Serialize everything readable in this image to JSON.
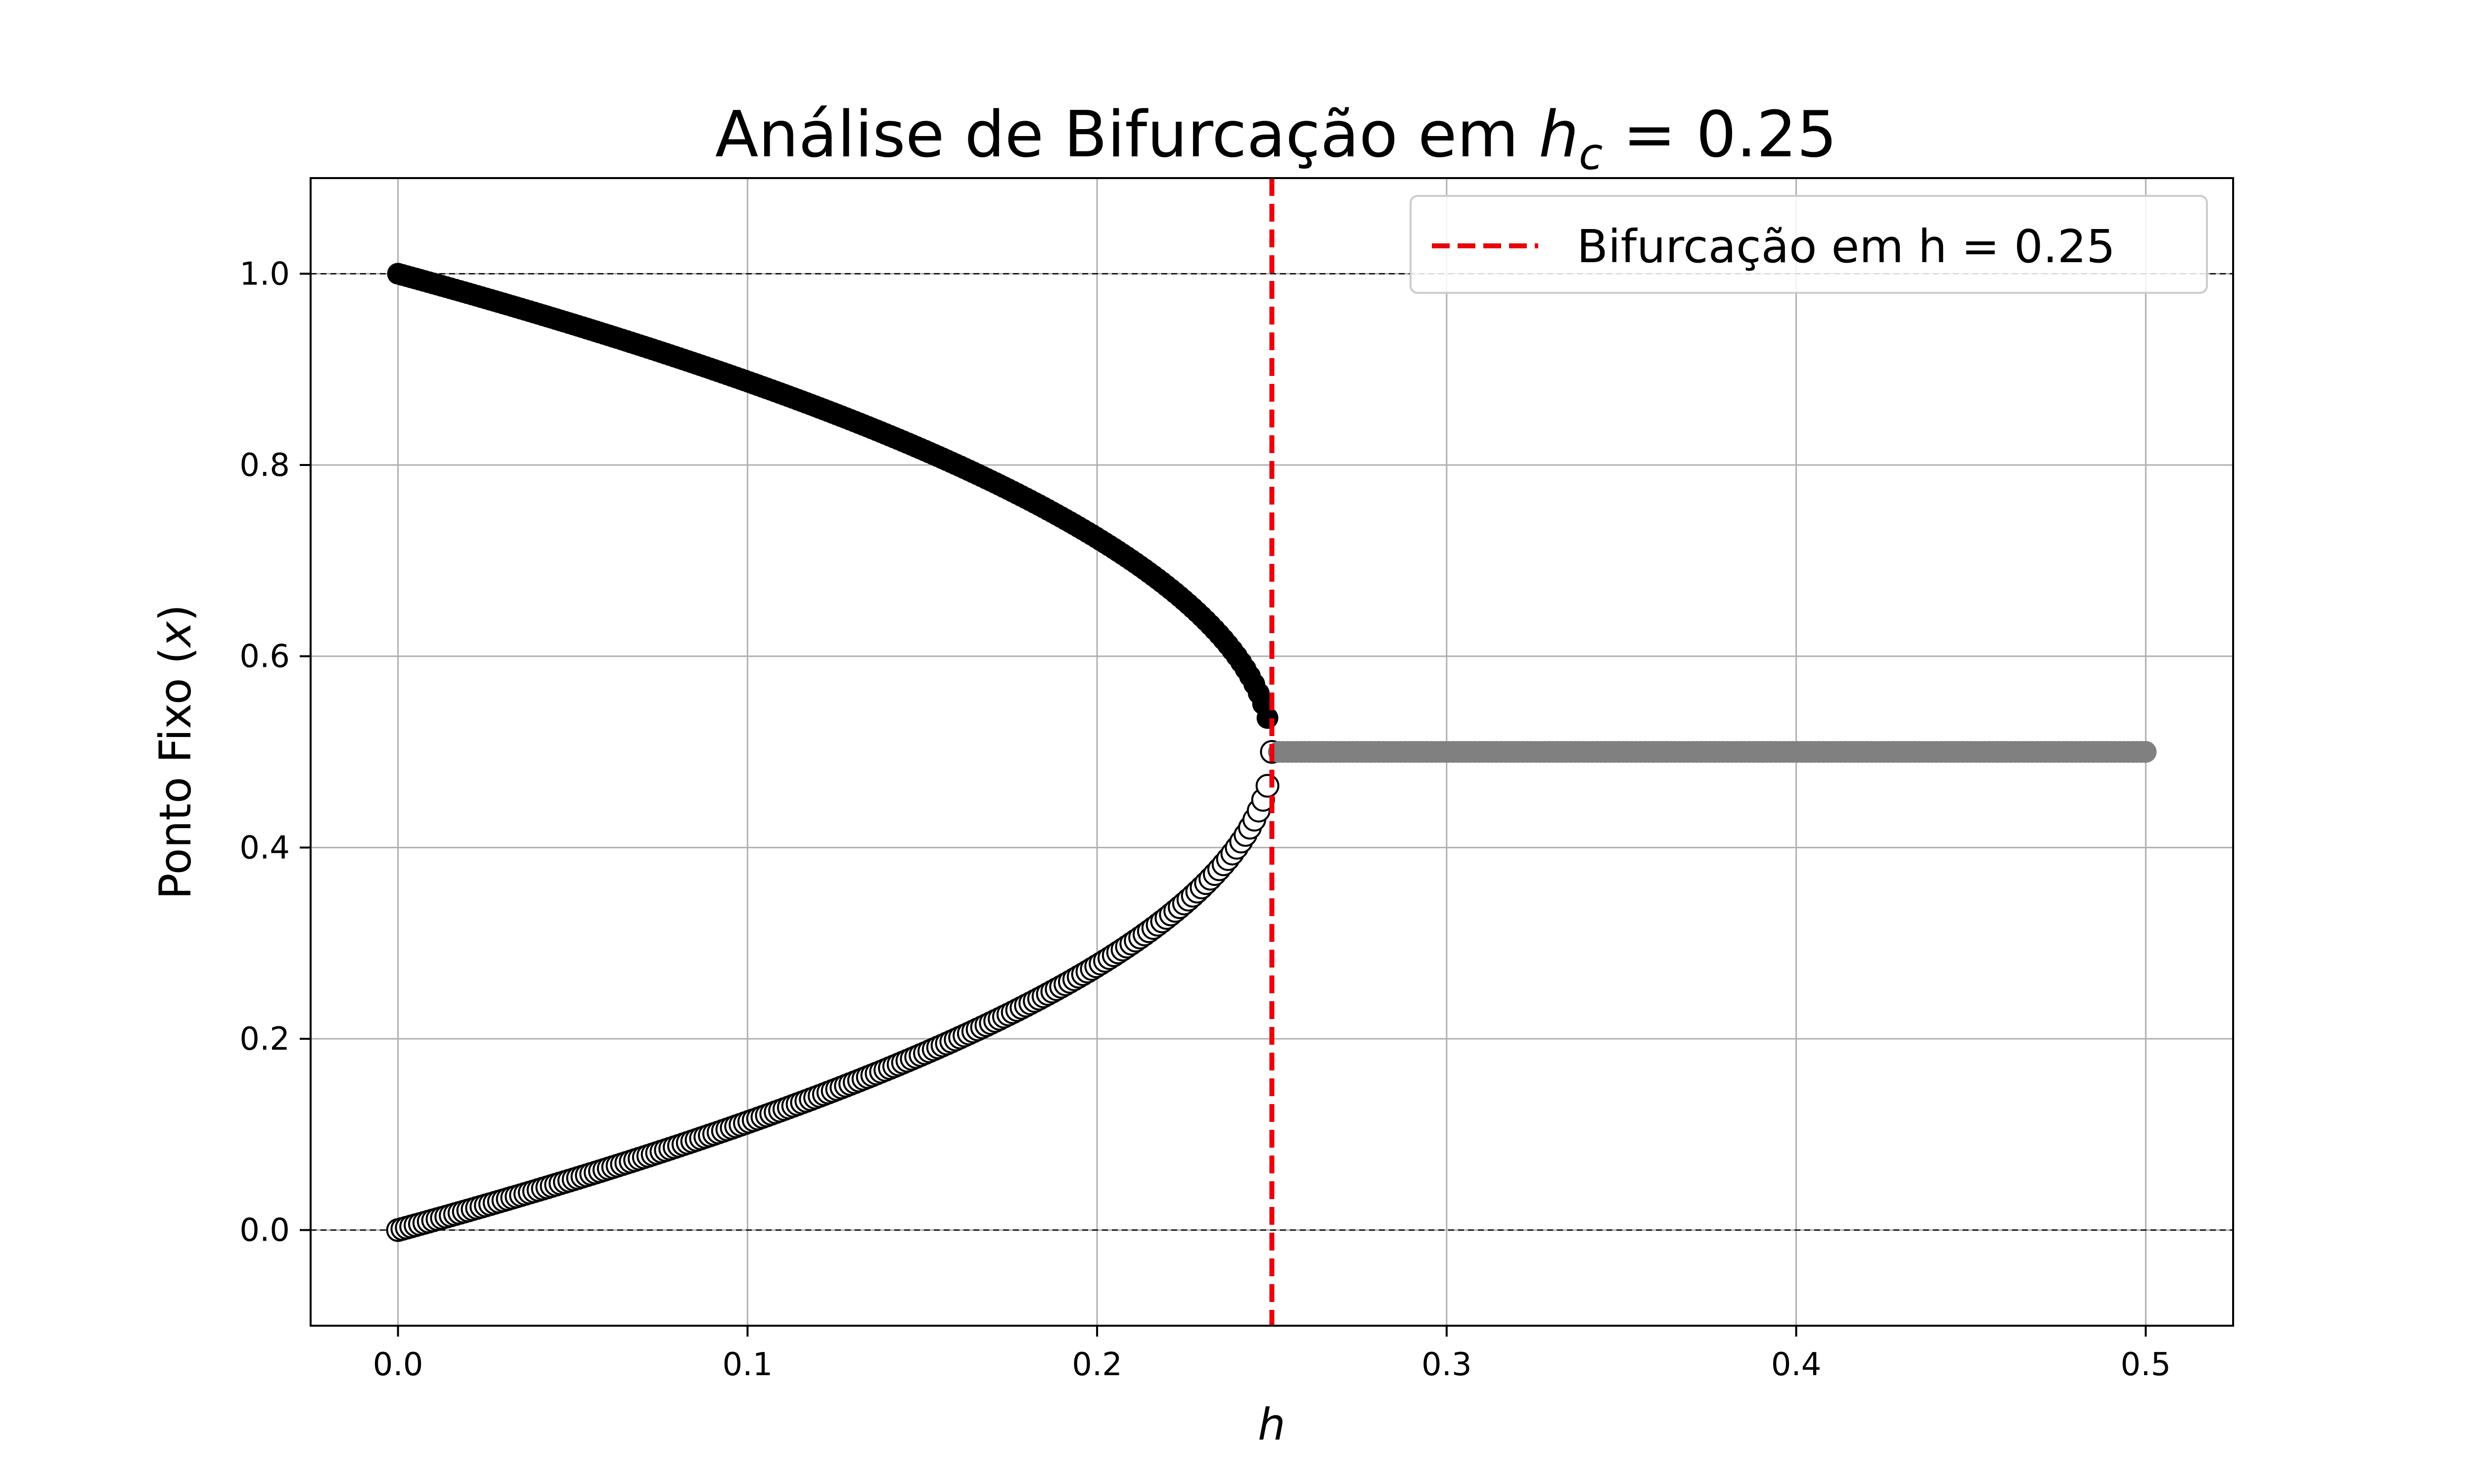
{
  "chart_data": {
    "type": "scatter",
    "title_prefix": "Análise de Bifurcação em ",
    "title_math": "h",
    "title_math_sub": "c",
    "title_suffix": " = 0.25",
    "xlabel": "h",
    "ylabel_prefix": "Ponto Fixo (",
    "ylabel_math": "x",
    "ylabel_suffix": ")",
    "xlim": [
      -0.025,
      0.525
    ],
    "ylim": [
      -0.1,
      1.1
    ],
    "xticks": [
      0.0,
      0.1,
      0.2,
      0.3,
      0.4,
      0.5
    ],
    "xtick_labels": [
      "0.0",
      "0.1",
      "0.2",
      "0.3",
      "0.4",
      "0.5"
    ],
    "yticks": [
      0.0,
      0.2,
      0.4,
      0.6,
      0.8,
      1.0
    ],
    "ytick_labels": [
      "0.0",
      "0.2",
      "0.4",
      "0.6",
      "0.8",
      "1.0"
    ],
    "grid": true,
    "legend_placement": "top-right",
    "reference_lines_y": [
      0.0,
      1.0
    ],
    "bifurcation": {
      "x": 0.25,
      "label": "Bifurcação em h = 0.25",
      "color": "#e8000b"
    },
    "series": [
      {
        "role": "stable-branch",
        "formula": "x = (1 + sqrt(1 - 4h)) / 2",
        "h_range": [
          0.0,
          0.25
        ],
        "points": 200,
        "marker": "filled",
        "color": "#000000"
      },
      {
        "role": "unstable-branch",
        "formula": "x = (1 - sqrt(1 - 4h)) / 2",
        "h_range": [
          0.0,
          0.25
        ],
        "points": 200,
        "marker": "open",
        "color": "#000000"
      },
      {
        "role": "no-fixed-point",
        "formula": "x = 0.5",
        "h_range": [
          0.252,
          0.5
        ],
        "points": 200,
        "marker": "filled",
        "color": "#808080"
      }
    ]
  }
}
